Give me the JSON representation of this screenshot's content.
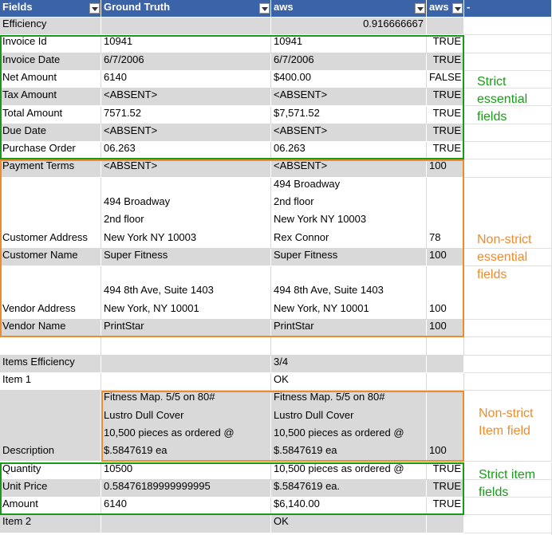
{
  "header": [
    "Fields",
    "Ground Truth",
    "aws",
    "aws",
    "-"
  ],
  "rows": [
    [
      "Efficiency",
      null,
      "0.916666667",
      null
    ],
    [
      "Invoice Id",
      "10941",
      "10941",
      "TRUE"
    ],
    [
      "Invoice Date",
      "6/7/2006",
      "6/7/2006",
      "TRUE"
    ],
    [
      "Net Amount",
      "6140",
      "$400.00",
      "FALSE"
    ],
    [
      "Tax Amount",
      "<ABSENT>",
      "<ABSENT>",
      "TRUE"
    ],
    [
      "Total Amount",
      "7571.52",
      "$7,571.52",
      "TRUE"
    ],
    [
      "Due Date",
      "<ABSENT>",
      "<ABSENT>",
      "TRUE"
    ],
    [
      "Purchase Order",
      "06.263",
      "06.263",
      "TRUE"
    ],
    [
      "Payment Terms",
      "<ABSENT>",
      "<ABSENT>",
      "100"
    ],
    [
      "Customer Address",
      "494 Broadway\n2nd floor\nNew York NY 10003",
      "494 Broadway\n2nd floor\nNew York NY 10003\nRex Connor",
      "78"
    ],
    [
      "Customer Name",
      "Super Fitness",
      "Super Fitness",
      "100"
    ],
    [
      "Vendor Address",
      "494 8th Ave, Suite 1403\nNew York, NY 10001",
      "494 8th Ave, Suite 1403\nNew York, NY 10001",
      "100"
    ],
    [
      "Vendor Name",
      "PrintStar",
      "PrintStar",
      "100"
    ],
    [
      null,
      null,
      null,
      null
    ],
    [
      "Items Efficiency",
      null,
      "3/4",
      null
    ],
    [
      "Item 1",
      null,
      "OK",
      null
    ],
    [
      "Description",
      "Fitness Map. 5/5 on 80#\nLustro Dull Cover\n10,500 pieces as ordered @\n$.5847619 ea",
      "Fitness Map. 5/5 on 80#\nLustro Dull Cover\n10,500 pieces as ordered @\n$.5847619 ea",
      "100"
    ],
    [
      "Quantity",
      "10500",
      "10,500 pieces as ordered @",
      "TRUE"
    ],
    [
      "Unit Price",
      "0.58476189999999995",
      "$.5847619 ea.",
      "TRUE"
    ],
    [
      "Amount",
      "6140",
      "$6,140.00",
      "TRUE"
    ],
    [
      "Item 2",
      null,
      "OK",
      null
    ]
  ],
  "annotations": [
    "Strict\nessential\nfields",
    "Non-strict\nessential\nfields",
    "Non-strict\nItem field",
    "Strict item\nfields"
  ]
}
